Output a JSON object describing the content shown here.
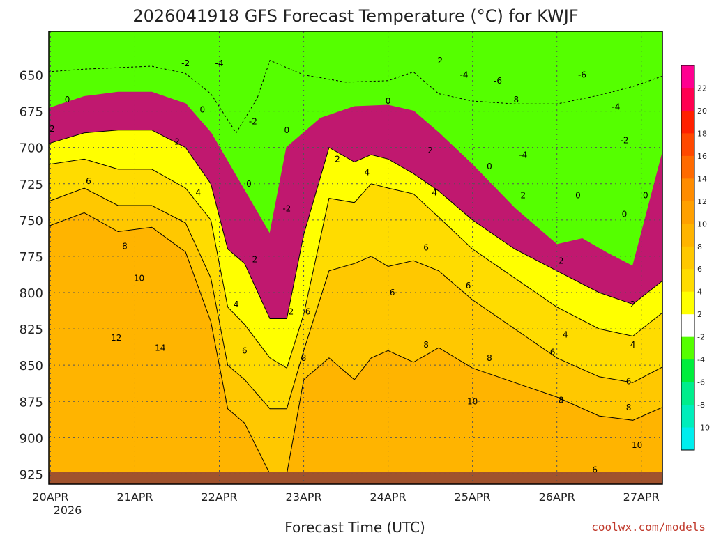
{
  "colors": {
    "green": "#55ff00",
    "white": "#ffffff",
    "yellow": "#ffff00",
    "orange": "#ffb400",
    "ground": "#a0522d",
    "magenta_zero": "#c0186f",
    "credit": "#c0392b"
  },
  "chart_data": {
    "type": "heatmap",
    "title": "2026041918 GFS Forecast Temperature (°C) for KWJF",
    "xlabel": "Forecast Time (UTC)",
    "ylabel": "",
    "credit": "coolwx.com/models",
    "y_axis": {
      "reversed": true,
      "ylim": [
        620,
        932
      ],
      "ticks": [
        "650",
        "675",
        "700",
        "725",
        "750",
        "775",
        "800",
        "825",
        "850",
        "875",
        "900",
        "925"
      ],
      "tick_values": [
        650,
        675,
        700,
        725,
        750,
        775,
        800,
        825,
        850,
        875,
        900,
        925
      ]
    },
    "x_axis": {
      "xlim": [
        -0.02,
        7.25
      ],
      "ticks": [
        "20APR",
        "21APR",
        "22APR",
        "23APR",
        "24APR",
        "25APR",
        "26APR",
        "27APR"
      ],
      "tick_values": [
        0,
        1,
        2,
        3,
        4,
        5,
        6,
        7
      ],
      "sub_label": "2026"
    },
    "grid": true,
    "colorbar": {
      "labels": [
        "22",
        "20",
        "18",
        "16",
        "14",
        "12",
        "10",
        "8",
        "6",
        "4",
        "2",
        "-2",
        "-4",
        "-6",
        "-8",
        "-10"
      ],
      "colors": [
        "#ff0090",
        "#ff0050",
        "#ff2000",
        "#ff4800",
        "#ff6a00",
        "#ff8c00",
        "#ffa000",
        "#ffb400",
        "#ffc800",
        "#ffdc00",
        "#ffff00",
        "#ffffff",
        "#55ff00",
        "#00ee3c",
        "#00ee8c",
        "#00eebb",
        "#00eeee"
      ]
    },
    "series": [
      {
        "name": "-2 C",
        "color": "#55ff00",
        "x": [
          0,
          0.4,
          0.8,
          1.2,
          1.6,
          1.9,
          2.2,
          2.45,
          2.6,
          3.0,
          3.5,
          4.0,
          4.3,
          4.6,
          5.0,
          5.5,
          6.0,
          6.5,
          6.9,
          7.2
        ],
        "y": [
          648,
          646,
          645,
          644,
          649,
          663,
          690,
          666,
          640,
          650,
          655,
          654,
          648,
          663,
          668,
          670,
          670,
          664,
          658,
          650
        ]
      },
      {
        "name": "0 C",
        "color": "#c0186f",
        "x": [
          0,
          0.4,
          0.8,
          1.2,
          1.6,
          1.9,
          2.2,
          2.45,
          2.6,
          2.8,
          3.2,
          3.6,
          4.0,
          4.3,
          4.6,
          5.0,
          5.5,
          6.0,
          6.3,
          6.6,
          6.9,
          7.15
        ],
        "y": [
          674,
          665,
          662,
          662,
          670,
          690,
          720,
          745,
          760,
          700,
          680,
          672,
          671,
          675,
          690,
          712,
          742,
          767,
          763,
          773,
          782,
          695
        ]
      },
      {
        "name": "2 C",
        "color": "#ffff00",
        "x": [
          0,
          0.4,
          0.8,
          1.2,
          1.6,
          1.9,
          2.1,
          2.3,
          2.6,
          2.8,
          3.0,
          3.3,
          3.6,
          3.8,
          4.0,
          4.3,
          4.6,
          5.0,
          5.5,
          6.0,
          6.5,
          6.9,
          7.2
        ],
        "y": [
          698,
          690,
          688,
          688,
          700,
          725,
          770,
          780,
          818,
          818,
          760,
          700,
          710,
          705,
          708,
          718,
          730,
          750,
          770,
          785,
          800,
          808,
          790
        ]
      },
      {
        "name": "4 C",
        "color": "#ffdc00",
        "x": [
          0,
          0.4,
          0.8,
          1.2,
          1.6,
          1.9,
          2.1,
          2.3,
          2.6,
          2.8,
          3.0,
          3.3,
          3.6,
          3.8,
          4.0,
          4.3,
          4.6,
          5.0,
          5.5,
          6.0,
          6.5,
          6.9,
          7.2
        ],
        "y": [
          712,
          708,
          715,
          715,
          728,
          750,
          810,
          822,
          845,
          852,
          815,
          735,
          738,
          725,
          728,
          732,
          748,
          770,
          790,
          810,
          825,
          830,
          812
        ]
      },
      {
        "name": "6 C",
        "color": "#ffc800",
        "x": [
          0,
          0.4,
          0.8,
          1.2,
          1.6,
          1.9,
          2.1,
          2.3,
          2.6,
          2.8,
          3.0,
          3.3,
          3.6,
          3.8,
          4.0,
          4.3,
          4.6,
          5.0,
          5.5,
          6.0,
          6.5,
          6.9,
          7.2
        ],
        "y": [
          738,
          728,
          740,
          740,
          752,
          790,
          850,
          860,
          880,
          880,
          840,
          785,
          780,
          775,
          782,
          778,
          785,
          805,
          825,
          845,
          858,
          862,
          850
        ]
      },
      {
        "name": "8 C",
        "color": "#ffb400",
        "x": [
          0,
          0.4,
          0.8,
          1.2,
          1.6,
          1.9,
          2.1,
          2.3,
          2.6,
          2.8,
          3.0,
          3.3,
          3.6,
          3.8,
          4.0,
          4.3,
          4.6,
          5.0,
          5.5,
          6.0,
          6.5,
          6.9,
          7.2
        ],
        "y": [
          755,
          745,
          758,
          755,
          772,
          820,
          880,
          890,
          925,
          925,
          860,
          845,
          860,
          845,
          840,
          848,
          838,
          852,
          862,
          872,
          885,
          888,
          878
        ]
      }
    ],
    "contour_labels": [
      {
        "text": "-2",
        "x": 1.6,
        "y": 644
      },
      {
        "text": "-4",
        "x": 2.0,
        "y": 644
      },
      {
        "text": "-2",
        "x": 2.4,
        "y": 684
      },
      {
        "text": "-2",
        "x": 4.6,
        "y": 642
      },
      {
        "text": "-4",
        "x": 4.9,
        "y": 652
      },
      {
        "text": "-6",
        "x": 5.3,
        "y": 656
      },
      {
        "text": "-8",
        "x": 5.5,
        "y": 669
      },
      {
        "text": "-6",
        "x": 6.3,
        "y": 652
      },
      {
        "text": "-4",
        "x": 5.6,
        "y": 707
      },
      {
        "text": "-4",
        "x": 6.7,
        "y": 674
      },
      {
        "text": "-2",
        "x": 6.8,
        "y": 697
      },
      {
        "text": "-2",
        "x": 2.8,
        "y": 744
      },
      {
        "text": "0",
        "x": 0.2,
        "y": 669
      },
      {
        "text": "0",
        "x": 1.8,
        "y": 676
      },
      {
        "text": "0",
        "x": 2.8,
        "y": 690
      },
      {
        "text": "0",
        "x": 2.35,
        "y": 727
      },
      {
        "text": "0",
        "x": 4.0,
        "y": 670
      },
      {
        "text": "0",
        "x": 5.2,
        "y": 715
      },
      {
        "text": "0",
        "x": 6.25,
        "y": 735
      },
      {
        "text": "0",
        "x": 6.8,
        "y": 748
      },
      {
        "text": "0",
        "x": 7.05,
        "y": 735
      },
      {
        "text": "2",
        "x": 0.02,
        "y": 689
      },
      {
        "text": "2",
        "x": 1.5,
        "y": 698
      },
      {
        "text": "2",
        "x": 3.4,
        "y": 710
      },
      {
        "text": "2",
        "x": 4.5,
        "y": 704
      },
      {
        "text": "2",
        "x": 5.6,
        "y": 735
      },
      {
        "text": "2",
        "x": 6.05,
        "y": 780
      },
      {
        "text": "2",
        "x": 2.85,
        "y": 815
      },
      {
        "text": "2",
        "x": 2.42,
        "y": 779
      },
      {
        "text": "2",
        "x": 6.9,
        "y": 810
      },
      {
        "text": "4",
        "x": 1.75,
        "y": 733
      },
      {
        "text": "4",
        "x": 3.75,
        "y": 719
      },
      {
        "text": "4",
        "x": 4.55,
        "y": 733
      },
      {
        "text": "4",
        "x": 2.2,
        "y": 810
      },
      {
        "text": "4",
        "x": 6.1,
        "y": 831
      },
      {
        "text": "4",
        "x": 6.9,
        "y": 838
      },
      {
        "text": "6",
        "x": 0.45,
        "y": 725
      },
      {
        "text": "6",
        "x": 2.3,
        "y": 842
      },
      {
        "text": "6",
        "x": 3.05,
        "y": 815
      },
      {
        "text": "6",
        "x": 4.05,
        "y": 802
      },
      {
        "text": "6",
        "x": 4.45,
        "y": 771
      },
      {
        "text": "6",
        "x": 4.95,
        "y": 797
      },
      {
        "text": "6",
        "x": 5.95,
        "y": 843
      },
      {
        "text": "6",
        "x": 6.85,
        "y": 863
      },
      {
        "text": "6",
        "x": 6.45,
        "y": 924
      },
      {
        "text": "8",
        "x": 0.88,
        "y": 770
      },
      {
        "text": "8",
        "x": 3.0,
        "y": 847
      },
      {
        "text": "8",
        "x": 4.45,
        "y": 838
      },
      {
        "text": "8",
        "x": 5.2,
        "y": 847
      },
      {
        "text": "8",
        "x": 6.05,
        "y": 876
      },
      {
        "text": "8",
        "x": 6.85,
        "y": 881
      },
      {
        "text": "10",
        "x": 1.05,
        "y": 792
      },
      {
        "text": "10",
        "x": 5.0,
        "y": 877
      },
      {
        "text": "10",
        "x": 6.95,
        "y": 907
      },
      {
        "text": "12",
        "x": 0.78,
        "y": 833
      },
      {
        "text": "14",
        "x": 1.3,
        "y": 840
      }
    ]
  }
}
